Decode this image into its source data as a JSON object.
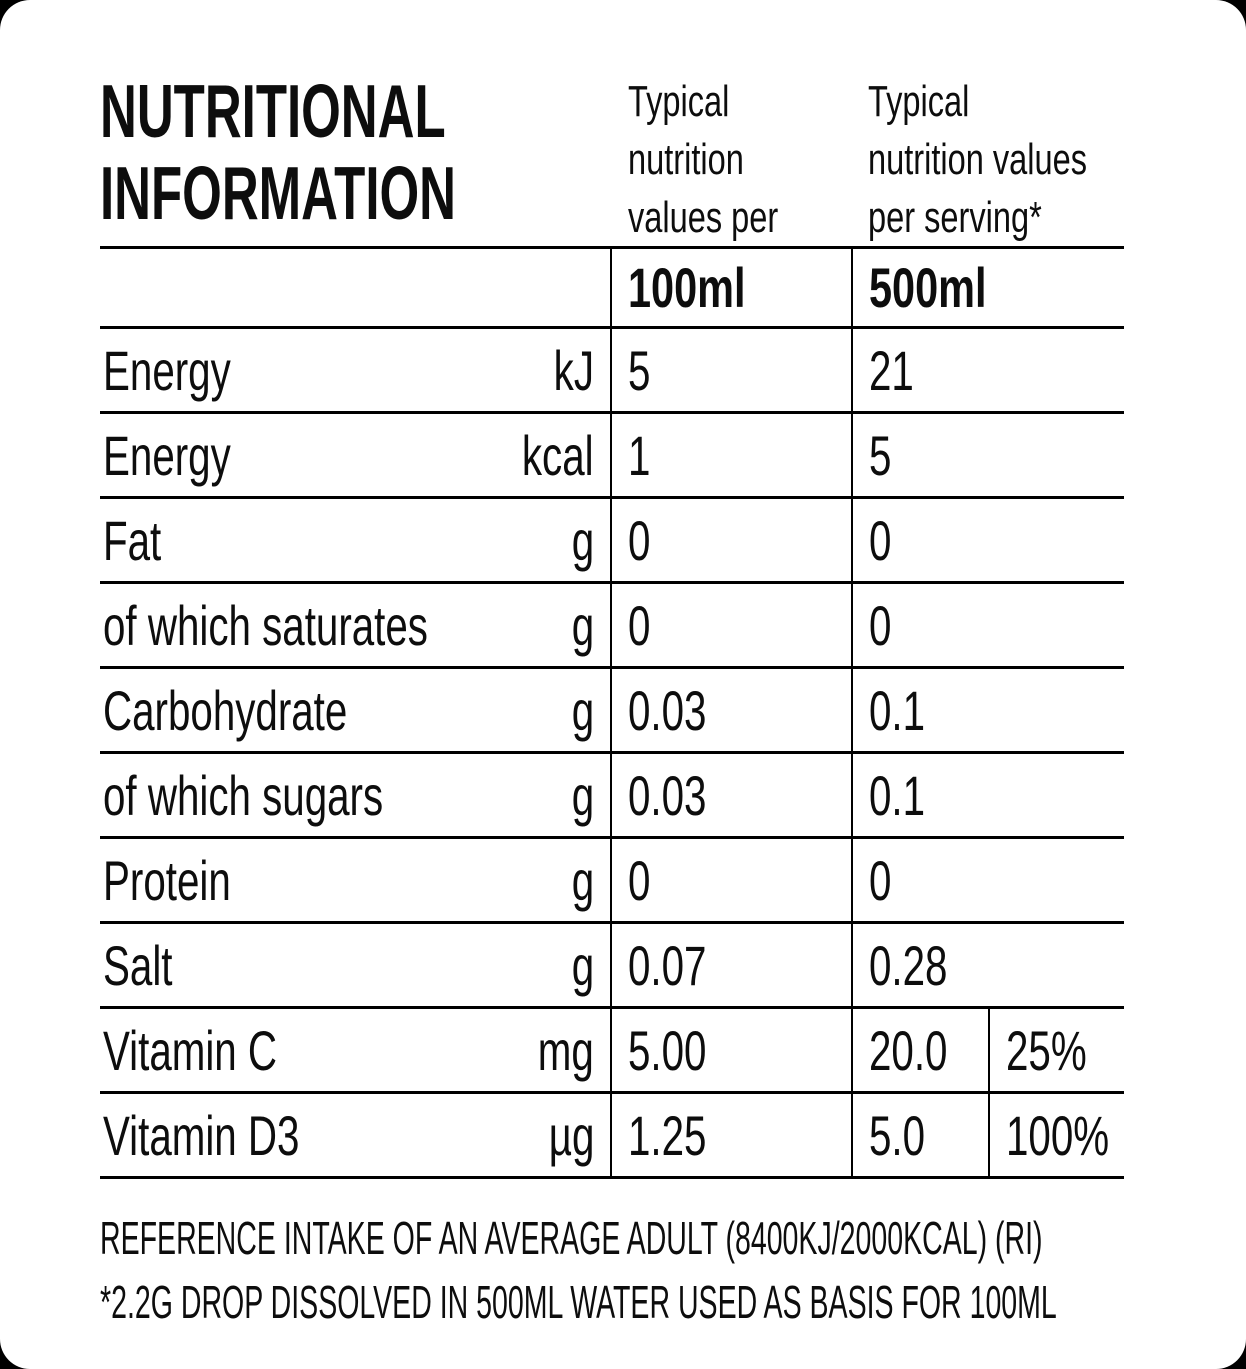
{
  "title": {
    "text": "NUTRITIONAL\nINFORMATION"
  },
  "column_headers": {
    "per_100ml": "Typical\nnutrition\nvalues per",
    "per_serving": "Typical\nnutrition values\nper serving*"
  },
  "table": {
    "size_headers": [
      "100ml",
      "500ml"
    ],
    "rows": [
      {
        "label": "Energy",
        "unit": "kJ",
        "per_100ml": "5",
        "per_500ml": "21",
        "ri": null
      },
      {
        "label": "Energy",
        "unit": "kcal",
        "per_100ml": "1",
        "per_500ml": "5",
        "ri": null
      },
      {
        "label": "Fat",
        "unit": "g",
        "per_100ml": "0",
        "per_500ml": "0",
        "ri": null
      },
      {
        "label": "of which saturates",
        "unit": "g",
        "per_100ml": "0",
        "per_500ml": "0",
        "ri": null
      },
      {
        "label": "Carbohydrate",
        "unit": "g",
        "per_100ml": "0.03",
        "per_500ml": "0.1",
        "ri": null
      },
      {
        "label": "of which sugars",
        "unit": "g",
        "per_100ml": "0.03",
        "per_500ml": "0.1",
        "ri": null
      },
      {
        "label": "Protein",
        "unit": "g",
        "per_100ml": "0",
        "per_500ml": "0",
        "ri": null
      },
      {
        "label": "Salt",
        "unit": "g",
        "per_100ml": "0.07",
        "per_500ml": "0.28",
        "ri": null
      },
      {
        "label": "Vitamin C",
        "unit": "mg",
        "per_100ml": "5.00",
        "per_500ml": "20.0",
        "ri": "25%"
      },
      {
        "label": "Vitamin D3",
        "unit": "µg",
        "per_100ml": "1.25",
        "per_500ml": "5.0",
        "ri": "100%"
      }
    ]
  },
  "footnotes": {
    "line1": "REFERENCE INTAKE OF AN AVERAGE ADULT (8400KJ/2000KCAL) (RI)",
    "line2": "*2.2G DROP DISSOLVED IN 500ML WATER USED AS BASIS FOR 100ML"
  },
  "colors": {
    "page_background": "#000000",
    "card_background": "#ffffff",
    "text": "#0d0d0d",
    "border": "#000000"
  }
}
